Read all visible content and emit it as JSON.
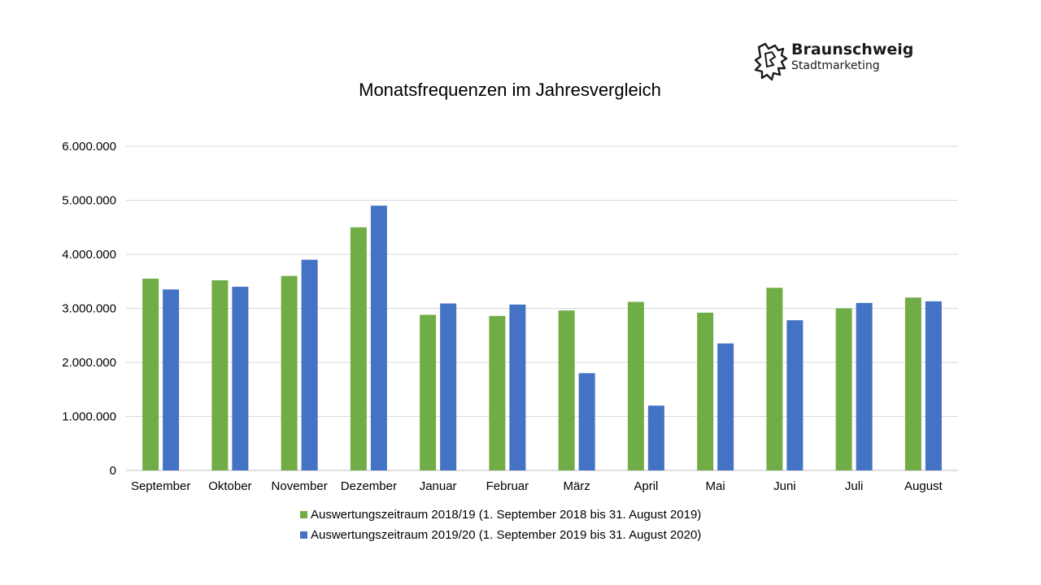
{
  "logo": {
    "name": "Braunschweig",
    "subtitle": "Stadtmarketing",
    "icon": "lion-icon"
  },
  "chart_data": {
    "type": "bar",
    "title": "Monatsfrequenzen im Jahresvergleich",
    "xlabel": "",
    "ylabel": "",
    "ylim": [
      0,
      6000000
    ],
    "yticks": [
      0,
      1000000,
      2000000,
      3000000,
      4000000,
      5000000,
      6000000
    ],
    "ytick_labels": [
      "0",
      "1.000.000",
      "2.000.000",
      "3.000.000",
      "4.000.000",
      "5.000.000",
      "6.000.000"
    ],
    "grid": true,
    "legend_position": "bottom",
    "categories": [
      "September",
      "Oktober",
      "November",
      "Dezember",
      "Januar",
      "Februar",
      "März",
      "April",
      "Mai",
      "Juni",
      "Juli",
      "August"
    ],
    "series": [
      {
        "name": "Auswertungszeitraum 2018/19 (1. September 2018 bis 31. August 2019)",
        "color": "#70ad47",
        "values": [
          3550000,
          3520000,
          3600000,
          4500000,
          2880000,
          2860000,
          2960000,
          3120000,
          2920000,
          3380000,
          3000000,
          3200000
        ]
      },
      {
        "name": "Auswertungszeitraum 2019/20 (1. September 2019 bis 31. August 2020)",
        "color": "#4472c4",
        "values": [
          3350000,
          3400000,
          3900000,
          4900000,
          3090000,
          3070000,
          1800000,
          1200000,
          2350000,
          2780000,
          3100000,
          3130000
        ]
      }
    ]
  }
}
